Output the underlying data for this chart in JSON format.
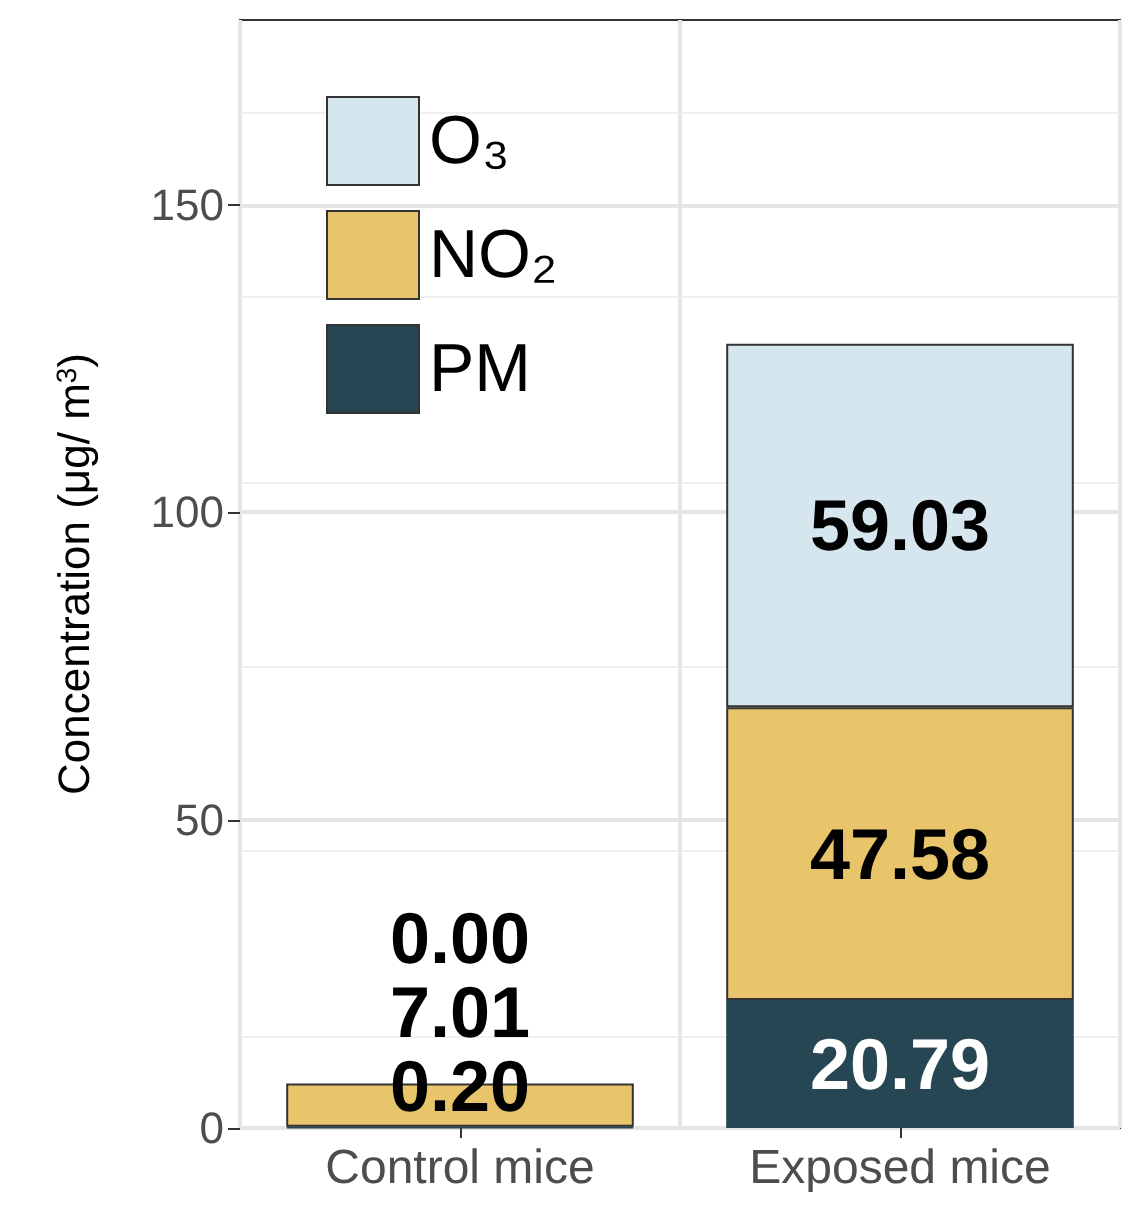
{
  "chart_data": {
    "type": "bar",
    "stacked": true,
    "ylabel": "Concentration (μg/ m$^{3}$)",
    "categories": [
      "Control mice",
      "Exposed mice"
    ],
    "series": [
      {
        "name": "PM",
        "color": "#264653",
        "values": [
          0.2,
          20.79
        ],
        "value_labels": [
          "0.20",
          "20.79"
        ]
      },
      {
        "name": "NO₂",
        "color": "#e8c46b",
        "values": [
          7.01,
          47.58
        ],
        "value_labels": [
          "7.01",
          "47.58"
        ]
      },
      {
        "name": "O₃",
        "color": "#d6e6ee",
        "values": [
          0.0,
          59.03
        ],
        "value_labels": [
          "0.00",
          "59.03"
        ]
      }
    ],
    "ylim": [
      0,
      180
    ],
    "yticks": [
      0,
      50,
      100,
      150
    ],
    "grid": true,
    "legend": "top left"
  }
}
